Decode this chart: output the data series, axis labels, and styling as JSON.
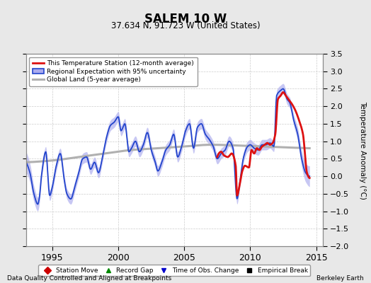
{
  "title": "SALEM 10 W",
  "subtitle": "37.634 N, 91.723 W (United States)",
  "ylabel": "Temperature Anomaly (°C)",
  "xlabel_left": "Data Quality Controlled and Aligned at Breakpoints",
  "xlabel_right": "Berkeley Earth",
  "ylim": [
    -2.0,
    3.5
  ],
  "xlim": [
    1993.0,
    2015.5
  ],
  "yticks": [
    -2,
    -1.5,
    -1,
    -0.5,
    0,
    0.5,
    1,
    1.5,
    2,
    2.5,
    3,
    3.5
  ],
  "xticks": [
    1995,
    2000,
    2005,
    2010,
    2015
  ],
  "bg_color": "#e8e8e8",
  "plot_bg_color": "#ffffff",
  "grid_color": "#cccccc"
}
